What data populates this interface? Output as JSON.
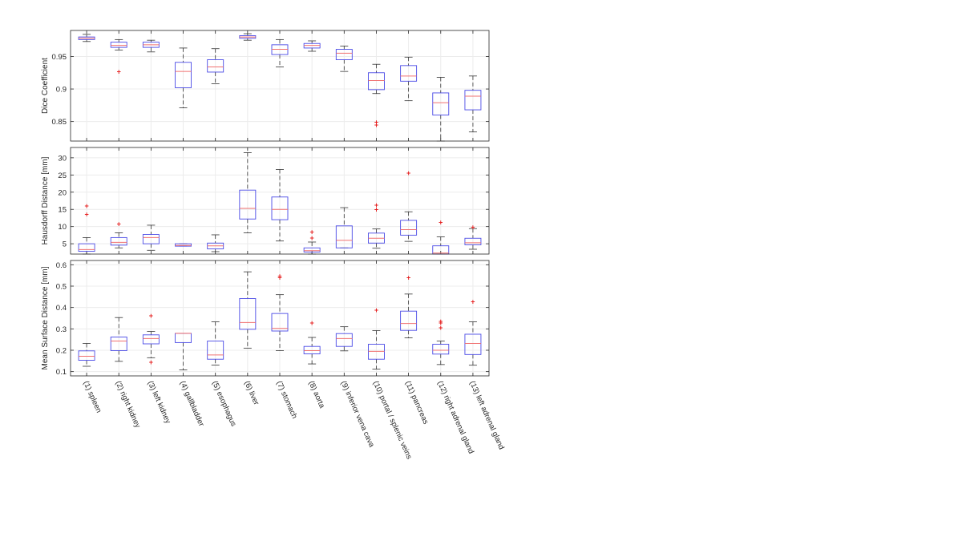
{
  "colors": {
    "box": "#4a4ae6",
    "median": "#f07070",
    "whisker": "#333333",
    "outlier": "#e62222",
    "axis": "#262626",
    "grid": "#ececec"
  },
  "chart_data": {
    "type": "boxplot",
    "grid": true,
    "categories": [
      "(1) spleen",
      "(2) right kidney",
      "(3) left kidney",
      "(4) gallbladder",
      "(5) esophagus",
      "(6) liver",
      "(7) stomach",
      "(8) aorta",
      "(9) inferior vena cava",
      "(10) portal / splenic veins",
      "(11) pancreas",
      "(12) right adrenal gland",
      "(13) left adrenal gland"
    ],
    "panels": [
      {
        "ylabel": "Dice Coefficient",
        "ylim": [
          0.82,
          0.99
        ],
        "yticks": [
          0.85,
          0.9,
          0.95
        ],
        "ytick_labels": [
          "0.85",
          "0.9",
          "0.95"
        ],
        "boxes": [
          {
            "wlo": 0.973,
            "q1": 0.976,
            "med": 0.978,
            "q3": 0.98,
            "whi": 0.984,
            "out": []
          },
          {
            "wlo": 0.96,
            "q1": 0.964,
            "med": 0.967,
            "q3": 0.972,
            "whi": 0.976,
            "out": [
              0.927
            ]
          },
          {
            "wlo": 0.957,
            "q1": 0.964,
            "med": 0.968,
            "q3": 0.972,
            "whi": 0.975,
            "out": []
          },
          {
            "wlo": 0.871,
            "q1": 0.902,
            "med": 0.927,
            "q3": 0.941,
            "whi": 0.963,
            "out": []
          },
          {
            "wlo": 0.908,
            "q1": 0.926,
            "med": 0.934,
            "q3": 0.945,
            "whi": 0.962,
            "out": []
          },
          {
            "wlo": 0.975,
            "q1": 0.978,
            "med": 0.98,
            "q3": 0.982,
            "whi": 0.985,
            "out": []
          },
          {
            "wlo": 0.934,
            "q1": 0.953,
            "med": 0.961,
            "q3": 0.968,
            "whi": 0.976,
            "out": []
          },
          {
            "wlo": 0.958,
            "q1": 0.963,
            "med": 0.967,
            "q3": 0.97,
            "whi": 0.974,
            "out": []
          },
          {
            "wlo": 0.927,
            "q1": 0.945,
            "med": 0.955,
            "q3": 0.961,
            "whi": 0.966,
            "out": []
          },
          {
            "wlo": 0.893,
            "q1": 0.899,
            "med": 0.913,
            "q3": 0.925,
            "whi": 0.938,
            "out": [
              0.849,
              0.845
            ]
          },
          {
            "wlo": 0.882,
            "q1": 0.912,
            "med": 0.92,
            "q3": 0.936,
            "whi": 0.949,
            "out": []
          },
          {
            "wlo": 0.82,
            "q1": 0.86,
            "med": 0.879,
            "q3": 0.894,
            "whi": 0.918,
            "out": []
          },
          {
            "wlo": 0.834,
            "q1": 0.868,
            "med": 0.889,
            "q3": 0.898,
            "whi": 0.92,
            "out": []
          }
        ]
      },
      {
        "ylabel": "Hausdorff Distance [mm]",
        "ylim": [
          2,
          33
        ],
        "yticks": [
          5,
          10,
          15,
          20,
          25,
          30
        ],
        "ytick_labels": [
          "5",
          "10",
          "15",
          "20",
          "25",
          "30"
        ],
        "boxes": [
          {
            "wlo": 2,
            "q1": 2.8,
            "med": 3.3,
            "q3": 5.0,
            "whi": 6.8,
            "out": [
              16.0,
              13.6
            ]
          },
          {
            "wlo": 3.8,
            "q1": 4.6,
            "med": 5.4,
            "q3": 6.8,
            "whi": 8.2,
            "out": [
              10.8
            ]
          },
          {
            "wlo": 3.1,
            "q1": 5.0,
            "med": 6.8,
            "q3": 7.7,
            "whi": 10.4,
            "out": []
          },
          {
            "wlo": 4.3,
            "q1": 4.3,
            "med": 4.5,
            "q3": 5.0,
            "whi": 5.0,
            "out": []
          },
          {
            "wlo": 2.7,
            "q1": 3.5,
            "med": 4.4,
            "q3": 5.2,
            "whi": 7.6,
            "out": []
          },
          {
            "wlo": 8.2,
            "q1": 12.2,
            "med": 15.3,
            "q3": 20.6,
            "whi": 31.5,
            "out": []
          },
          {
            "wlo": 5.8,
            "q1": 12.0,
            "med": 15.0,
            "q3": 18.6,
            "whi": 26.6,
            "out": []
          },
          {
            "wlo": 2,
            "q1": 2.6,
            "med": 3.0,
            "q3": 3.8,
            "whi": 5.5,
            "out": [
              8.4,
              6.7
            ]
          },
          {
            "wlo": 3.8,
            "q1": 3.8,
            "med": 6.0,
            "q3": 10.2,
            "whi": 15.5,
            "out": []
          },
          {
            "wlo": 3.7,
            "q1": 5.2,
            "med": 6.6,
            "q3": 8.1,
            "whi": 9.3,
            "out": [
              16.3,
              15.0
            ]
          },
          {
            "wlo": 5.7,
            "q1": 7.5,
            "med": 9.1,
            "q3": 11.8,
            "whi": 14.3,
            "out": [
              25.6
            ]
          },
          {
            "wlo": 2,
            "q1": 2,
            "med": 2.3,
            "q3": 4.4,
            "whi": 7.0,
            "out": [
              11.3
            ]
          },
          {
            "wlo": 3.4,
            "q1": 4.7,
            "med": 5.3,
            "q3": 6.6,
            "whi": 9.4,
            "out": [
              9.9
            ]
          }
        ]
      },
      {
        "ylabel": "Mean Surface Distance [mm]",
        "ylim": [
          0.08,
          0.62
        ],
        "yticks": [
          0.1,
          0.2,
          0.3,
          0.4,
          0.5,
          0.6
        ],
        "ytick_labels": [
          "0.1",
          "0.2",
          "0.3",
          "0.4",
          "0.5",
          "0.6"
        ],
        "boxes": [
          {
            "wlo": 0.125,
            "q1": 0.153,
            "med": 0.172,
            "q3": 0.197,
            "whi": 0.232,
            "out": []
          },
          {
            "wlo": 0.148,
            "q1": 0.198,
            "med": 0.243,
            "q3": 0.262,
            "whi": 0.353,
            "out": []
          },
          {
            "wlo": 0.165,
            "q1": 0.23,
            "med": 0.255,
            "q3": 0.272,
            "whi": 0.288,
            "out": [
              0.362,
              0.144
            ]
          },
          {
            "wlo": 0.108,
            "q1": 0.236,
            "med": 0.279,
            "q3": 0.279,
            "whi": 0.279,
            "out": []
          },
          {
            "wlo": 0.131,
            "q1": 0.158,
            "med": 0.178,
            "q3": 0.243,
            "whi": 0.333,
            "out": []
          },
          {
            "wlo": 0.21,
            "q1": 0.298,
            "med": 0.33,
            "q3": 0.442,
            "whi": 0.567,
            "out": []
          },
          {
            "wlo": 0.198,
            "q1": 0.29,
            "med": 0.302,
            "q3": 0.372,
            "whi": 0.46,
            "out": [
              0.548,
              0.54
            ]
          },
          {
            "wlo": 0.136,
            "q1": 0.183,
            "med": 0.198,
            "q3": 0.218,
            "whi": 0.26,
            "out": [
              0.329
            ]
          },
          {
            "wlo": 0.197,
            "q1": 0.218,
            "med": 0.255,
            "q3": 0.278,
            "whi": 0.31,
            "out": []
          },
          {
            "wlo": 0.112,
            "q1": 0.158,
            "med": 0.195,
            "q3": 0.228,
            "whi": 0.292,
            "out": [
              0.388
            ]
          },
          {
            "wlo": 0.258,
            "q1": 0.293,
            "med": 0.325,
            "q3": 0.383,
            "whi": 0.463,
            "out": [
              0.541
            ]
          },
          {
            "wlo": 0.133,
            "q1": 0.182,
            "med": 0.2,
            "q3": 0.228,
            "whi": 0.243,
            "out": [
              0.336,
              0.329,
              0.305
            ]
          },
          {
            "wlo": 0.13,
            "q1": 0.18,
            "med": 0.232,
            "q3": 0.275,
            "whi": 0.333,
            "out": [
              0.428
            ]
          }
        ]
      }
    ]
  }
}
